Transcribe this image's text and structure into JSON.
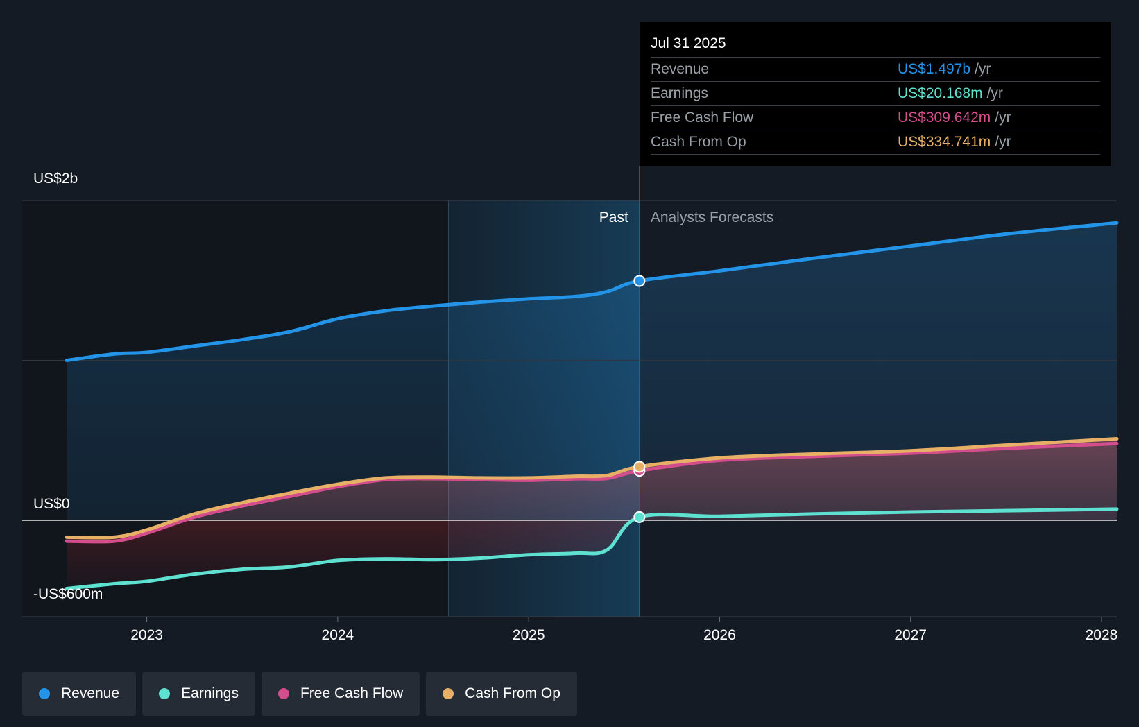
{
  "chart_data": {
    "type": "area",
    "y_unit": "US$ millions",
    "ylim": [
      -600,
      2000
    ],
    "y_axis_labels": [
      {
        "value": 2000,
        "text": "US$2b"
      },
      {
        "value": 0,
        "text": "US$0"
      },
      {
        "value": -600,
        "text": "-US$600m"
      }
    ],
    "x_ticks": [
      "2023",
      "2024",
      "2025",
      "2026",
      "2027",
      "2028"
    ],
    "x_range": [
      2022.58,
      2028.08
    ],
    "past_label": "Past",
    "forecast_label": "Analysts Forecasts",
    "divider_x": 2025.58,
    "highlight_start_x": 2024.58,
    "series": [
      {
        "name": "Revenue",
        "color": "#2394e8",
        "points": [
          [
            2022.58,
            1000
          ],
          [
            2022.83,
            1040
          ],
          [
            2023.0,
            1050
          ],
          [
            2023.25,
            1090
          ],
          [
            2023.5,
            1130
          ],
          [
            2023.75,
            1180
          ],
          [
            2024.0,
            1260
          ],
          [
            2024.25,
            1310
          ],
          [
            2024.5,
            1340
          ],
          [
            2024.75,
            1365
          ],
          [
            2025.0,
            1385
          ],
          [
            2025.25,
            1400
          ],
          [
            2025.41,
            1430
          ],
          [
            2025.58,
            1497
          ],
          [
            2026.0,
            1560
          ],
          [
            2026.5,
            1640
          ],
          [
            2027.0,
            1715
          ],
          [
            2027.5,
            1790
          ],
          [
            2028.08,
            1860
          ]
        ]
      },
      {
        "name": "Earnings",
        "color": "#5ee1d1",
        "points": [
          [
            2022.58,
            -425
          ],
          [
            2022.83,
            -395
          ],
          [
            2023.0,
            -380
          ],
          [
            2023.25,
            -335
          ],
          [
            2023.5,
            -305
          ],
          [
            2023.75,
            -290
          ],
          [
            2024.0,
            -250
          ],
          [
            2024.25,
            -240
          ],
          [
            2024.5,
            -245
          ],
          [
            2024.75,
            -235
          ],
          [
            2025.0,
            -215
          ],
          [
            2025.25,
            -205
          ],
          [
            2025.41,
            -185
          ],
          [
            2025.58,
            20.168
          ],
          [
            2026.0,
            25
          ],
          [
            2026.5,
            40
          ],
          [
            2027.0,
            52
          ],
          [
            2027.5,
            60
          ],
          [
            2028.08,
            70
          ]
        ]
      },
      {
        "name": "Free Cash Flow",
        "color": "#d44d8c",
        "points": [
          [
            2022.58,
            -130
          ],
          [
            2022.83,
            -130
          ],
          [
            2023.0,
            -80
          ],
          [
            2023.25,
            20
          ],
          [
            2023.5,
            90
          ],
          [
            2023.75,
            150
          ],
          [
            2024.0,
            210
          ],
          [
            2024.25,
            255
          ],
          [
            2024.5,
            260
          ],
          [
            2024.75,
            255
          ],
          [
            2025.0,
            250
          ],
          [
            2025.25,
            260
          ],
          [
            2025.41,
            262
          ],
          [
            2025.58,
            309.642
          ],
          [
            2026.0,
            375
          ],
          [
            2026.5,
            400
          ],
          [
            2027.0,
            420
          ],
          [
            2027.5,
            450
          ],
          [
            2028.08,
            480
          ]
        ]
      },
      {
        "name": "Cash From Op",
        "color": "#e8b066",
        "points": [
          [
            2022.58,
            -105
          ],
          [
            2022.83,
            -105
          ],
          [
            2023.0,
            -60
          ],
          [
            2023.25,
            40
          ],
          [
            2023.5,
            110
          ],
          [
            2023.75,
            170
          ],
          [
            2024.0,
            225
          ],
          [
            2024.25,
            265
          ],
          [
            2024.5,
            270
          ],
          [
            2024.75,
            265
          ],
          [
            2025.0,
            265
          ],
          [
            2025.25,
            275
          ],
          [
            2025.41,
            280
          ],
          [
            2025.58,
            334.741
          ],
          [
            2026.0,
            390
          ],
          [
            2026.5,
            415
          ],
          [
            2027.0,
            435
          ],
          [
            2027.5,
            470
          ],
          [
            2028.08,
            510
          ]
        ]
      }
    ],
    "tooltip": {
      "date": "Jul 31 2025",
      "rows": [
        {
          "name": "Revenue",
          "value": "US$1.497b",
          "unit": "/yr",
          "color": "#2394e8"
        },
        {
          "name": "Earnings",
          "value": "US$20.168m",
          "unit": "/yr",
          "color": "#5ee1d1"
        },
        {
          "name": "Free Cash Flow",
          "value": "US$309.642m",
          "unit": "/yr",
          "color": "#d44d8c"
        },
        {
          "name": "Cash From Op",
          "value": "US$334.741m",
          "unit": "/yr",
          "color": "#e8b066"
        }
      ]
    }
  },
  "legend": [
    {
      "label": "Revenue",
      "color": "#2394e8"
    },
    {
      "label": "Earnings",
      "color": "#5ee1d1"
    },
    {
      "label": "Free Cash Flow",
      "color": "#d44d8c"
    },
    {
      "label": "Cash From Op",
      "color": "#e8b066"
    }
  ]
}
